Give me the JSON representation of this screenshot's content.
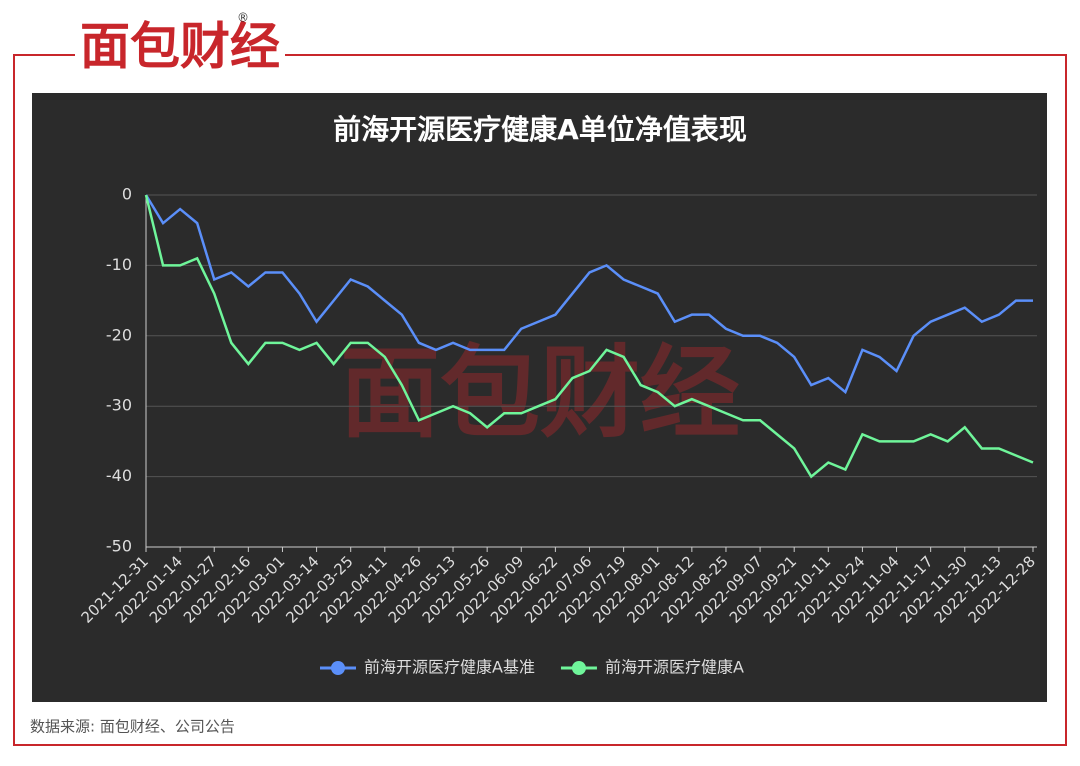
{
  "header": {
    "logo": "面包财经",
    "registered": "®"
  },
  "chart_data": {
    "type": "line",
    "title": "前海开源医疗健康A单位净值表现",
    "categories": [
      "2021-12-31",
      null,
      "2022-01-14",
      null,
      "2022-01-27",
      null,
      "2022-02-16",
      null,
      "2022-03-01",
      null,
      "2022-03-14",
      null,
      "2022-03-25",
      null,
      "2022-04-11",
      null,
      "2022-04-26",
      null,
      "2022-05-13",
      null,
      "2022-05-26",
      null,
      "2022-06-09",
      null,
      "2022-06-22",
      null,
      "2022-07-06",
      null,
      "2022-07-19",
      null,
      "2022-08-01",
      null,
      "2022-08-12",
      null,
      "2022-08-25",
      null,
      "2022-09-07",
      null,
      "2022-09-21",
      null,
      "2022-10-11",
      null,
      "2022-10-24",
      null,
      "2022-11-04",
      null,
      "2022-11-17",
      null,
      "2022-11-30",
      null,
      "2022-12-13",
      null,
      "2022-12-28"
    ],
    "series": [
      {
        "name": "前海开源医疗健康A基准",
        "color": "#5b8ff9",
        "values": [
          0,
          -4,
          -2,
          -4,
          -12,
          -11,
          -13,
          -11,
          -11,
          -14,
          -18,
          -15,
          -12,
          -13,
          -15,
          -17,
          -21,
          -22,
          -21,
          -22,
          -22,
          -22,
          -19,
          -18,
          -17,
          -14,
          -11,
          -10,
          -12,
          -13,
          -14,
          -18,
          -17,
          -17,
          -19,
          -20,
          -20,
          -21,
          -23,
          -27,
          -26,
          -28,
          -22,
          -23,
          -25,
          -20,
          -18,
          -17,
          -16,
          -18,
          -17,
          -15,
          -15
        ]
      },
      {
        "name": "前海开源医疗健康A",
        "color": "#6ff59a",
        "values": [
          0,
          -10,
          -10,
          -9,
          -14,
          -21,
          -24,
          -21,
          -21,
          -22,
          -21,
          -24,
          -21,
          -21,
          -23,
          -27,
          -32,
          -31,
          -30,
          -31,
          -33,
          -31,
          -31,
          -30,
          -29,
          -26,
          -25,
          -22,
          -23,
          -27,
          -28,
          -30,
          -29,
          -30,
          -31,
          -32,
          -32,
          -34,
          -36,
          -40,
          -38,
          -39,
          -34,
          -35,
          -35,
          -35,
          -34,
          -35,
          -33,
          -36,
          -36,
          -37,
          -38
        ]
      }
    ],
    "ylim": [
      -50,
      0
    ],
    "yticks": [
      -50,
      -40,
      -30,
      -20,
      -10,
      0
    ],
    "grid": true,
    "legend": "bottom"
  },
  "footer": {
    "source": "数据来源: 面包财经、公司公告"
  }
}
